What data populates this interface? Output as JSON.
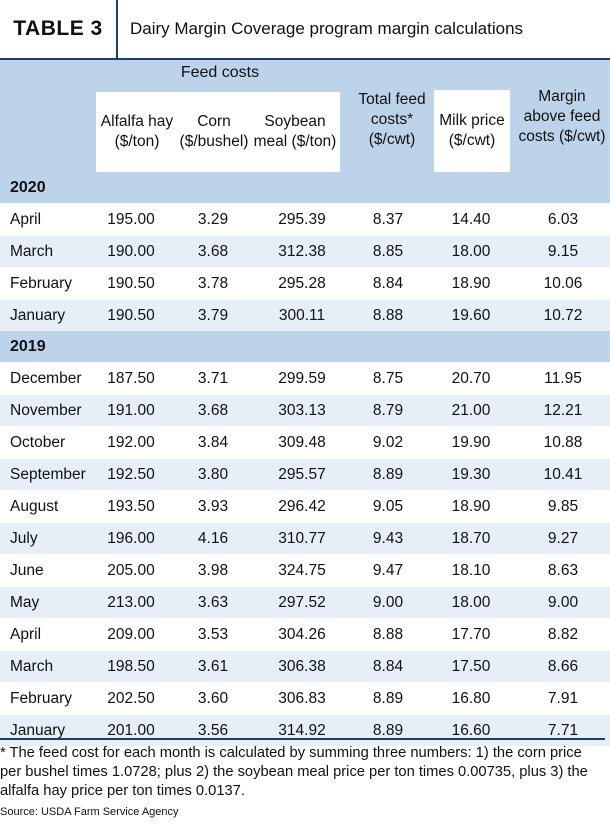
{
  "title": {
    "tag": "TABLE 3",
    "caption": "Dairy Margin Coverage program margin calculations"
  },
  "headers": {
    "feed_group": "Feed costs",
    "alfalfa": "Alfalfa hay ($/ton)",
    "corn": "Corn ($/bushel)",
    "soybean": "Soybean meal ($/ton)",
    "total_feed": "Total feed costs* ($/cwt)",
    "milk": "Milk price ($/cwt)",
    "margin": "Margin above feed costs ($/cwt)"
  },
  "sections": [
    {
      "year": "2020",
      "rows": [
        {
          "month": "April",
          "alfalfa": "195.00",
          "corn": "3.29",
          "soybean": "295.39",
          "total": "8.37",
          "milk": "14.40",
          "margin": "6.03"
        },
        {
          "month": "March",
          "alfalfa": "190.00",
          "corn": "3.68",
          "soybean": "312.38",
          "total": "8.85",
          "milk": "18.00",
          "margin": "9.15"
        },
        {
          "month": "February",
          "alfalfa": "190.50",
          "corn": "3.78",
          "soybean": "295.28",
          "total": "8.84",
          "milk": "18.90",
          "margin": "10.06"
        },
        {
          "month": "January",
          "alfalfa": "190.50",
          "corn": "3.79",
          "soybean": "300.11",
          "total": "8.88",
          "milk": "19.60",
          "margin": "10.72"
        }
      ]
    },
    {
      "year": "2019",
      "rows": [
        {
          "month": "December",
          "alfalfa": "187.50",
          "corn": "3.71",
          "soybean": "299.59",
          "total": "8.75",
          "milk": "20.70",
          "margin": "11.95"
        },
        {
          "month": "November",
          "alfalfa": "191.00",
          "corn": "3.68",
          "soybean": "303.13",
          "total": "8.79",
          "milk": "21.00",
          "margin": "12.21"
        },
        {
          "month": "October",
          "alfalfa": "192.00",
          "corn": "3.84",
          "soybean": "309.48",
          "total": "9.02",
          "milk": "19.90",
          "margin": "10.88"
        },
        {
          "month": "September",
          "alfalfa": "192.50",
          "corn": "3.80",
          "soybean": "295.57",
          "total": "8.89",
          "milk": "19.30",
          "margin": "10.41"
        },
        {
          "month": "August",
          "alfalfa": "193.50",
          "corn": "3.93",
          "soybean": "296.42",
          "total": "9.05",
          "milk": "18.90",
          "margin": "9.85"
        },
        {
          "month": "July",
          "alfalfa": "196.00",
          "corn": "4.16",
          "soybean": "310.77",
          "total": "9.43",
          "milk": "18.70",
          "margin": "9.27"
        },
        {
          "month": "June",
          "alfalfa": "205.00",
          "corn": "3.98",
          "soybean": "324.75",
          "total": "9.47",
          "milk": "18.10",
          "margin": "8.63"
        },
        {
          "month": "May",
          "alfalfa": "213.00",
          "corn": "3.63",
          "soybean": "297.52",
          "total": "9.00",
          "milk": "18.00",
          "margin": "9.00"
        },
        {
          "month": "April",
          "alfalfa": "209.00",
          "corn": "3.53",
          "soybean": "304.26",
          "total": "8.88",
          "milk": "17.70",
          "margin": "8.82"
        },
        {
          "month": "March",
          "alfalfa": "198.50",
          "corn": "3.61",
          "soybean": "306.38",
          "total": "8.84",
          "milk": "17.50",
          "margin": "8.66"
        },
        {
          "month": "February",
          "alfalfa": "202.50",
          "corn": "3.60",
          "soybean": "306.83",
          "total": "8.89",
          "milk": "16.80",
          "margin": "7.91"
        },
        {
          "month": "January",
          "alfalfa": "201.00",
          "corn": "3.56",
          "soybean": "314.92",
          "total": "8.89",
          "milk": "16.60",
          "margin": "7.71"
        }
      ]
    }
  ],
  "footnote": "* The feed cost for each month is calculated by summing three numbers: 1) the corn price per bushel times 1.0728; plus 2) the soybean meal price per ton times 0.00735, plus 3) the alfalfa hay price per ton times 0.0137.",
  "source": "Source: USDA Farm Service Agency",
  "colors": {
    "header_blue": "#bcd3ea",
    "stripe": "#e6eef7",
    "rule": "#1b3f6a"
  }
}
